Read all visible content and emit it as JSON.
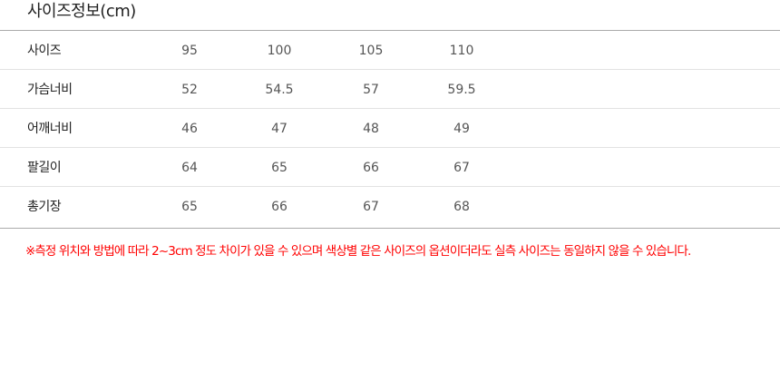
{
  "title": "사이즈정보(cm)",
  "rows": [
    {
      "label": "사이즈",
      "values": [
        "95",
        "100",
        "105",
        "110"
      ]
    },
    {
      "label": "가슴너비",
      "values": [
        "52",
        "54.5",
        "57",
        "59.5"
      ]
    },
    {
      "label": "어깨너비",
      "values": [
        "46",
        "47",
        "48",
        "49"
      ]
    },
    {
      "label": "팔길이",
      "values": [
        "64",
        "65",
        "66",
        "67"
      ]
    },
    {
      "label": "총기장",
      "values": [
        "65",
        "66",
        "67",
        "68"
      ]
    }
  ],
  "note": "※측정 위치와 방법에 따라 2~3cm 정도 차이가 있을 수 있으며 색상별 같은 사이즈의 옵션이더라도 실측 사이즈는 동일하지 않을 수 있습니다.",
  "colors": {
    "note": "#ff0000"
  }
}
